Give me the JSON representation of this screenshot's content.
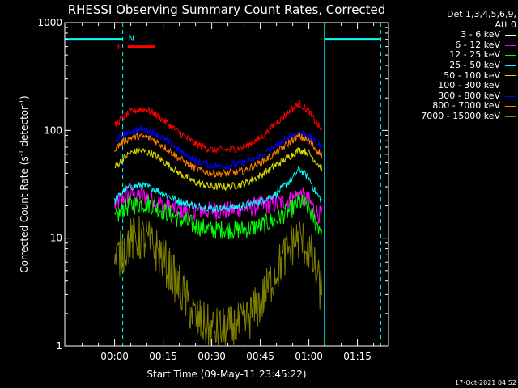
{
  "title": "RHESSI Observing Summary Count Rates, Corrected",
  "legend_header": [
    "Det 1,3,4,5,6,9,",
    "Att 0"
  ],
  "stamp": "17-Oct-2021 04:52",
  "chart_data": {
    "type": "line",
    "title": "RHESSI Observing Summary Count Rates, Corrected",
    "xlabel": "Start Time (09-May-11 23:45:22)",
    "ylabel": "Corrected Count Rate (s⁻¹ detector⁻¹)",
    "ylabel_main": "Corrected Count Rate (s",
    "ylabel_sup1": "-1",
    "ylabel_mid": " detector",
    "ylabel_sup2": "-1",
    "ylabel_end": ")",
    "xlim": [
      -15.4,
      84.6
    ],
    "ylim": [
      1,
      1000
    ],
    "yscale": "log",
    "x_tick_values": [
      0,
      15,
      30,
      45,
      60,
      75
    ],
    "x_ticks": [
      "00:00",
      "00:15",
      "00:30",
      "00:45",
      "01:00",
      "01:15"
    ],
    "y_ticks": [
      "1",
      "10",
      "100",
      "1000"
    ],
    "y_tick_values": [
      1,
      10,
      100,
      1000
    ],
    "grid": false,
    "legend_position": "right",
    "series": [
      {
        "name": "3 - 6 keV",
        "color": "#000000",
        "x": [
          -15.4
        ],
        "y": [
          1
        ]
      },
      {
        "name": "6 - 12 keV",
        "color": "#ff00ff",
        "x": [
          0,
          3,
          5,
          8,
          10,
          12,
          15,
          20,
          25,
          30,
          35,
          40,
          45,
          50,
          55,
          57,
          60,
          62,
          64
        ],
        "y": [
          20,
          24,
          26,
          25,
          24,
          23,
          20,
          18,
          18,
          18,
          18,
          19,
          20,
          21,
          23,
          26,
          22,
          18,
          16
        ]
      },
      {
        "name": "12 - 25 keV",
        "color": "#00ff00",
        "x": [
          0,
          3,
          5,
          8,
          10,
          12,
          15,
          20,
          25,
          30,
          35,
          40,
          45,
          50,
          55,
          57,
          60,
          62,
          64
        ],
        "y": [
          15,
          19,
          20,
          21,
          21,
          20,
          18,
          15,
          13,
          12,
          12,
          12,
          13,
          15,
          19,
          22,
          19,
          14,
          12
        ]
      },
      {
        "name": "25 - 50 keV",
        "color": "#00ffff",
        "x": [
          0,
          3,
          5,
          8,
          10,
          12,
          15,
          20,
          25,
          30,
          35,
          40,
          45,
          50,
          55,
          57,
          60,
          62,
          64
        ],
        "y": [
          22,
          28,
          30,
          31,
          30,
          29,
          26,
          22,
          20,
          19,
          19,
          20,
          22,
          26,
          36,
          44,
          36,
          27,
          22
        ]
      },
      {
        "name": "50 - 100 keV",
        "color": "#dddd00",
        "x": [
          0,
          3,
          5,
          8,
          10,
          12,
          15,
          20,
          25,
          30,
          35,
          40,
          45,
          50,
          55,
          57,
          60,
          62,
          64
        ],
        "y": [
          45,
          56,
          62,
          65,
          63,
          60,
          52,
          40,
          33,
          30,
          30,
          32,
          38,
          48,
          60,
          66,
          62,
          52,
          45
        ]
      },
      {
        "name": "100 - 300 keV",
        "color": "#ff0000",
        "x": [
          0,
          3,
          5,
          8,
          10,
          12,
          15,
          20,
          25,
          30,
          35,
          40,
          45,
          50,
          55,
          57,
          60,
          62,
          64
        ],
        "y": [
          110,
          135,
          148,
          158,
          155,
          145,
          125,
          95,
          75,
          66,
          66,
          70,
          85,
          118,
          160,
          178,
          150,
          120,
          100
        ]
      },
      {
        "name": "300 - 800 keV",
        "color": "#0000ff",
        "x": [
          0,
          3,
          5,
          8,
          10,
          12,
          15,
          20,
          25,
          30,
          35,
          40,
          45,
          50,
          55,
          57,
          60,
          62,
          64
        ],
        "y": [
          78,
          92,
          98,
          102,
          100,
          96,
          85,
          65,
          52,
          47,
          47,
          50,
          58,
          72,
          92,
          97,
          88,
          78,
          70
        ]
      },
      {
        "name": "800 - 7000 keV",
        "color": "#ff7f00",
        "x": [
          0,
          3,
          5,
          8,
          10,
          12,
          15,
          20,
          25,
          30,
          35,
          40,
          45,
          50,
          55,
          57,
          60,
          62,
          64
        ],
        "y": [
          68,
          80,
          86,
          88,
          86,
          82,
          72,
          55,
          44,
          40,
          40,
          42,
          50,
          62,
          82,
          88,
          80,
          68,
          60
        ]
      },
      {
        "name": "7000 - 15000 keV",
        "color": "#808000",
        "x": [
          0,
          3,
          5,
          8,
          10,
          12,
          15,
          20,
          25,
          30,
          35,
          40,
          45,
          50,
          55,
          57,
          60,
          62,
          64
        ],
        "y": [
          6,
          8,
          9.5,
          10,
          9.5,
          8.5,
          6.5,
          3.5,
          1.8,
          1.4,
          1.4,
          1.6,
          2.5,
          5,
          9,
          10,
          8,
          5,
          3
        ]
      }
    ],
    "annotations": {
      "top_band_label_N": "N",
      "top_band_label_F": "F"
    }
  }
}
